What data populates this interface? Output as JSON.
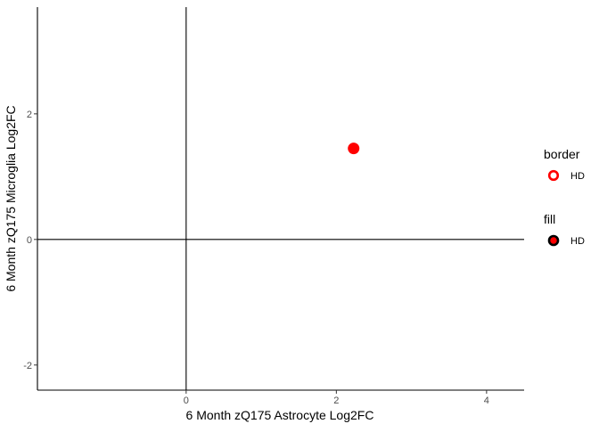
{
  "chart_data": {
    "type": "scatter",
    "xlabel": "6 Month zQ175 Astrocyte Log2FC",
    "ylabel": "6 Month zQ175 Microglia Log2FC",
    "xlim": [
      -1.98,
      4.5
    ],
    "ylim": [
      -2.4,
      3.7
    ],
    "x_ticks": [
      0,
      2,
      4
    ],
    "y_ticks": [
      -2,
      0,
      2
    ],
    "x_tick_labels": [
      "0",
      "2",
      "4"
    ],
    "y_tick_labels": [
      "-2",
      "0",
      "2"
    ],
    "grid": false,
    "reference_lines": {
      "x": 0,
      "y": 0
    },
    "points": [
      {
        "x": 2.23,
        "y": 1.45,
        "label": "HD"
      }
    ],
    "legend": {
      "placement": "right",
      "groups": [
        {
          "title": "border",
          "entries": [
            {
              "label": "HD",
              "style": "ring",
              "color": "#ff0000"
            }
          ]
        },
        {
          "title": "fill",
          "entries": [
            {
              "label": "HD",
              "style": "filled",
              "color": "#ff0000",
              "stroke": "#000000"
            }
          ]
        }
      ]
    },
    "colors": {
      "point": "#ff0000",
      "axis": "#000000"
    }
  }
}
